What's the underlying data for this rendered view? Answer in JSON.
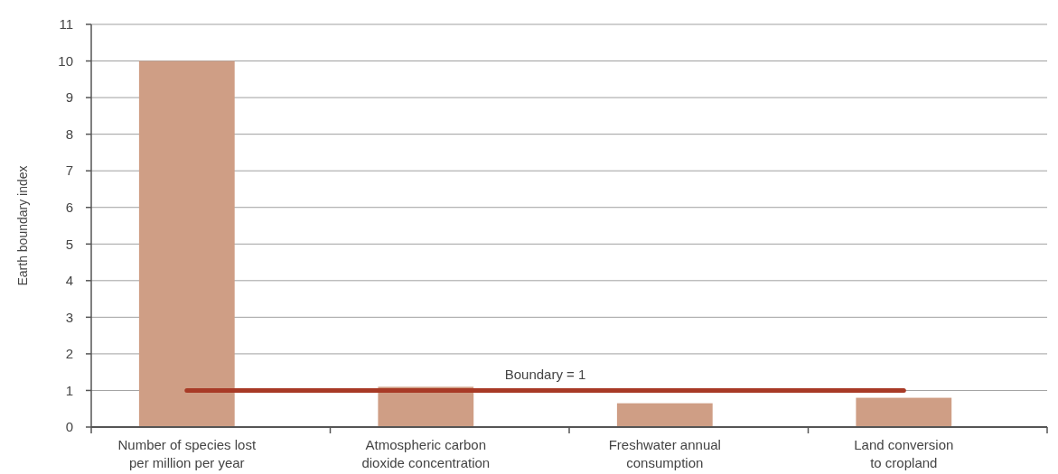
{
  "chart_data": {
    "type": "bar",
    "ylabel": "Earth boundary index",
    "categories": [
      "Number of species lost\nper million per year",
      "Atmospheric carbon\ndioxide concentration",
      "Freshwater annual\nconsumption",
      "Land conversion\nto cropland"
    ],
    "values": [
      10,
      1.1,
      0.65,
      0.8
    ],
    "color": "#cf9e85",
    "ylim": [
      0,
      11
    ],
    "yticks": [
      0,
      1,
      2,
      3,
      4,
      5,
      6,
      7,
      8,
      9,
      10,
      11
    ],
    "grid": "y",
    "ref_lines": [
      {
        "axis": "y",
        "value": 1,
        "label": "Boundary = 1",
        "color": "#a83a26"
      }
    ]
  }
}
